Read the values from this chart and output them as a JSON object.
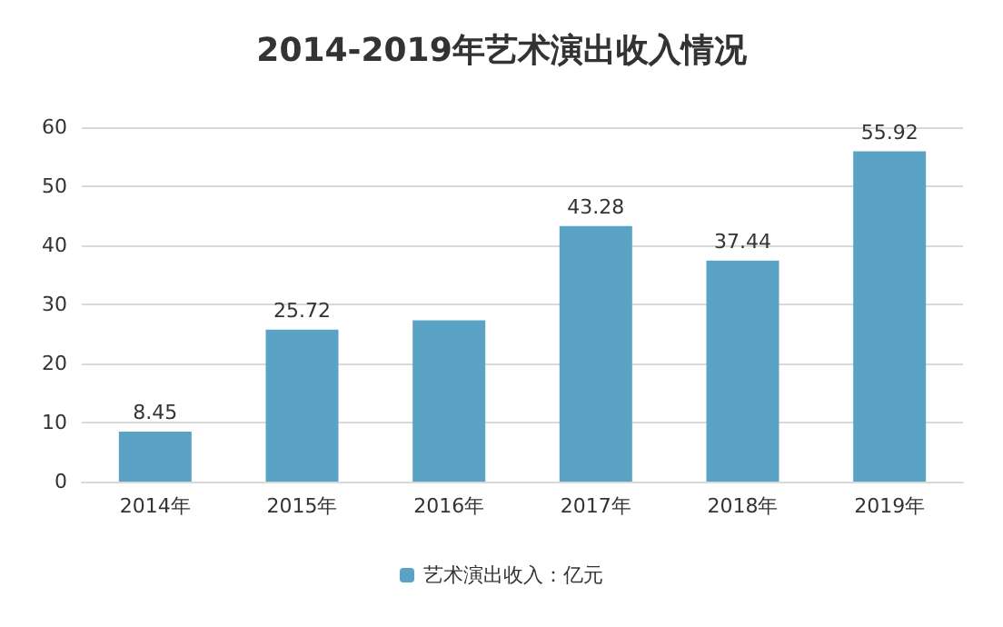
{
  "chart_data": {
    "type": "bar",
    "title": "2014-2019年艺术演出收入情况",
    "categories": [
      "2014年",
      "2015年",
      "2016年",
      "2017年",
      "2018年",
      "2019年"
    ],
    "series": [
      {
        "name": "艺术演出收入：亿元",
        "color": "#5ba3c4",
        "values": [
          8.45,
          25.72,
          27.3,
          43.28,
          37.44,
          55.92
        ],
        "value_labels": [
          "8.45",
          "25.72",
          null,
          "43.28",
          "37.44",
          "55.92"
        ]
      }
    ],
    "ylim": [
      0,
      60
    ],
    "yticks": [
      0,
      10,
      20,
      30,
      40,
      50,
      60
    ],
    "grid": "y",
    "legend": "bottom"
  }
}
